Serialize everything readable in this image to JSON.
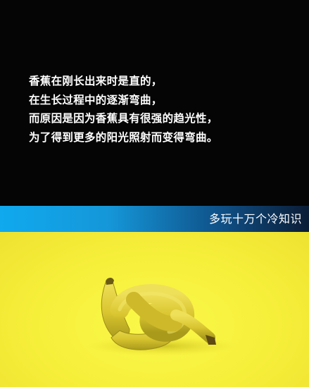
{
  "caption": {
    "lines": [
      "香蕉在刚长出来时是直的，",
      "在生长过程中的逐渐弯曲，",
      "而原因是因为香蕉具有很强的趋光性，",
      "为了得到更多的阳光照射而变得弯曲。"
    ]
  },
  "banner": {
    "text": "多玩十万个冷知识"
  },
  "colors": {
    "top_background": "#050505",
    "banner_start": "#10a9ee",
    "banner_end": "#0b1c35",
    "photo_background": "#f6ef3a",
    "banana": "#e2cf36"
  },
  "photo": {
    "subject": "banana-tied-in-knot"
  }
}
